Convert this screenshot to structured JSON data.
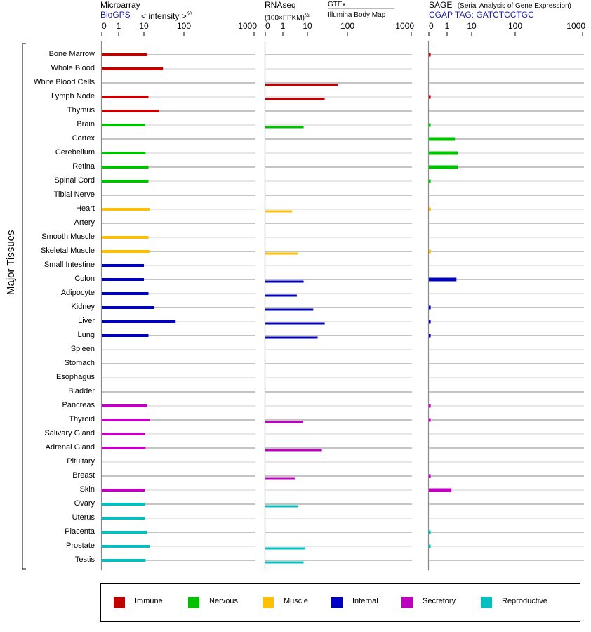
{
  "chart_data": {
    "type": "bar",
    "ylabel": "Major Tissues",
    "categories": [
      "Bone Marrow",
      "Whole Blood",
      "White Blood Cells",
      "Lymph Node",
      "Thymus",
      "Brain",
      "Cortex",
      "Cerebellum",
      "Retina",
      "Spinal Cord",
      "Tibial Nerve",
      "Heart",
      "Artery",
      "Smooth Muscle",
      "Skeletal Muscle",
      "Small Intestine",
      "Colon",
      "Adipocyte",
      "Kidney",
      "Liver",
      "Lung",
      "Spleen",
      "Stomach",
      "Esophagus",
      "Bladder",
      "Pancreas",
      "Thyroid",
      "Salivary Gland",
      "Adrenal Gland",
      "Pituitary",
      "Breast",
      "Skin",
      "Ovary",
      "Uterus",
      "Placenta",
      "Prostate",
      "Testis"
    ],
    "groups": [
      "Immune",
      "Immune",
      "Immune",
      "Immune",
      "Immune",
      "Nervous",
      "Nervous",
      "Nervous",
      "Nervous",
      "Nervous",
      "Nervous",
      "Muscle",
      "Muscle",
      "Muscle",
      "Muscle",
      "Internal",
      "Internal",
      "Internal",
      "Internal",
      "Internal",
      "Internal",
      "Internal",
      "Internal",
      "Internal",
      "Internal",
      "Secretory",
      "Secretory",
      "Secretory",
      "Secretory",
      "Secretory",
      "Secretory",
      "Secretory",
      "Reproductive",
      "Reproductive",
      "Reproductive",
      "Reproductive",
      "Reproductive"
    ],
    "panels": [
      {
        "title": "Microarray",
        "subtitle_link": "BioGPS",
        "subtitle": "< intensity >",
        "exponent": "⅔",
        "ticks": [
          "0",
          "1",
          "10",
          "100",
          "1000"
        ],
        "values": [
          12,
          30,
          null,
          13,
          24,
          10.5,
          null,
          11,
          13,
          13,
          null,
          14,
          null,
          13,
          14,
          10,
          10,
          13,
          18,
          62,
          13,
          null,
          null,
          null,
          null,
          12,
          14,
          10.5,
          11,
          null,
          null,
          10.5,
          10.5,
          10.5,
          12,
          14,
          11
        ]
      },
      {
        "title": "RNAseq",
        "subtitle": "(100×FPKM)",
        "exponent": "½",
        "source_top": "GTEx",
        "source_bottom": "Illumina Body Map",
        "ticks": [
          "0",
          "1",
          "10",
          "100",
          "1000"
        ],
        "values": [
          null,
          null,
          57,
          27,
          null,
          7,
          null,
          null,
          null,
          null,
          null,
          2.4,
          null,
          null,
          4.2,
          null,
          7,
          3.7,
          14,
          27,
          18,
          null,
          null,
          null,
          null,
          null,
          6.3,
          null,
          23,
          null,
          3.1,
          null,
          4.2,
          null,
          null,
          8.2,
          7
        ]
      },
      {
        "title": "SAGE",
        "subtitle_note": "(Serial Analysis of Gene Expression)",
        "subtitle_link": "CGAP TAG: GATCTCCTGC",
        "ticks": [
          "0",
          "1",
          "10",
          "100",
          "1000"
        ],
        "values": [
          0.1,
          null,
          null,
          0.1,
          null,
          0.1,
          2.1,
          2.7,
          2.7,
          0.1,
          null,
          0.1,
          null,
          null,
          0.1,
          null,
          2.4,
          null,
          0.1,
          0.1,
          0.1,
          null,
          null,
          null,
          null,
          0.1,
          0.1,
          null,
          null,
          null,
          0.1,
          1.5,
          null,
          null,
          0.1,
          0.1,
          null
        ]
      }
    ],
    "legend": [
      {
        "name": "Immune",
        "color": "#c00000"
      },
      {
        "name": "Nervous",
        "color": "#00c000"
      },
      {
        "name": "Muscle",
        "color": "#ffc000"
      },
      {
        "name": "Internal",
        "color": "#0000c0"
      },
      {
        "name": "Secretory",
        "color": "#c000c0"
      },
      {
        "name": "Reproductive",
        "color": "#00c0c0"
      }
    ]
  }
}
